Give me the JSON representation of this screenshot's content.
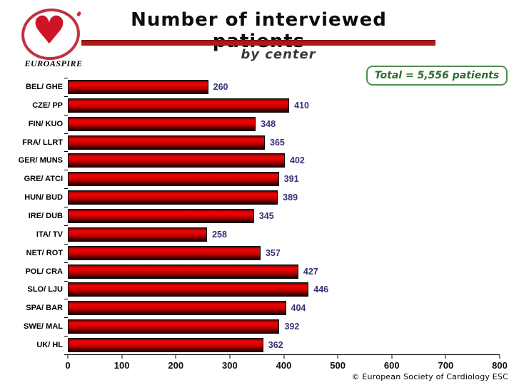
{
  "slide": {
    "title": "Number of interviewed patients",
    "subtitle": "by center",
    "total_badge": "Total = 5,556 patients",
    "logo_label": "EUROASPIRE",
    "copyright": "© European Society of Cardiology ESC"
  },
  "colors": {
    "bar_red": "#cc0000",
    "title_rule_red": "#ad1a1a",
    "value_label_navy": "#333377",
    "total_green": "#2c6e2f",
    "logo_red": "#cf1426"
  },
  "chart_data": {
    "type": "bar",
    "orientation": "horizontal",
    "title": "Number of interviewed patients",
    "subtitle": "by center",
    "categories": [
      "BEL/ GHE",
      "CZE/ PP",
      "FIN/ KUO",
      "FRA/ LLRT",
      "GER/ MUNS",
      "GRE/ ATCI",
      "HUN/ BUD",
      "IRE/ DUB",
      "ITA/ TV",
      "NET/ ROT",
      "POL/ CRA",
      "SLO/ LJU",
      "SPA/ BAR",
      "SWE/ MAL",
      "UK/ HL"
    ],
    "values": [
      260,
      410,
      348,
      365,
      402,
      391,
      389,
      345,
      258,
      357,
      427,
      446,
      404,
      392,
      362
    ],
    "total": 5556,
    "xlabel": "",
    "ylabel": "",
    "xlim": [
      0,
      800
    ],
    "x_ticks": [
      0,
      100,
      200,
      300,
      400,
      500,
      600,
      700,
      800
    ],
    "grid": false,
    "legend": "none",
    "annotation": "Total = 5,556 patients",
    "value_labels_shown": true
  }
}
